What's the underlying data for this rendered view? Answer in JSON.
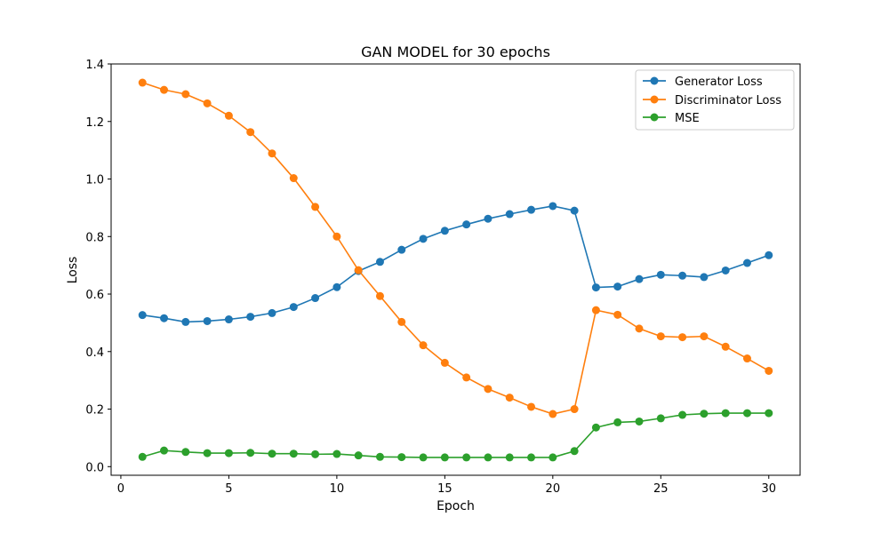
{
  "chart_data": {
    "type": "line",
    "title": "GAN MODEL  for 30 epochs",
    "xlabel": "Epoch",
    "ylabel": "Loss",
    "xlim": [
      -0.45,
      31.45
    ],
    "ylim": [
      -0.03,
      1.4
    ],
    "xticks": [
      0,
      5,
      10,
      15,
      20,
      25,
      30
    ],
    "yticks": [
      0.0,
      0.2,
      0.4,
      0.6,
      0.8,
      1.0,
      1.2,
      1.4
    ],
    "ytick_labels": [
      "0.0",
      "0.2",
      "0.4",
      "0.6",
      "0.8",
      "1.0",
      "1.2",
      "1.4"
    ],
    "grid": false,
    "legend_position": "top-right",
    "x": [
      1,
      2,
      3,
      4,
      5,
      6,
      7,
      8,
      9,
      10,
      11,
      12,
      13,
      14,
      15,
      16,
      17,
      18,
      19,
      20,
      21,
      22,
      23,
      24,
      25,
      26,
      27,
      28,
      29,
      30
    ],
    "series": [
      {
        "name": "Generator Loss",
        "color": "#1f77b4",
        "values": [
          0.527,
          0.516,
          0.503,
          0.506,
          0.512,
          0.521,
          0.534,
          0.555,
          0.586,
          0.624,
          0.68,
          0.712,
          0.754,
          0.792,
          0.82,
          0.842,
          0.862,
          0.878,
          0.893,
          0.906,
          0.89,
          0.623,
          0.626,
          0.652,
          0.667,
          0.664,
          0.659,
          0.682,
          0.708,
          0.735
        ]
      },
      {
        "name": "Discriminator Loss",
        "color": "#ff7f0e",
        "values": [
          1.335,
          1.31,
          1.295,
          1.263,
          1.22,
          1.163,
          1.089,
          1.003,
          0.903,
          0.8,
          0.683,
          0.593,
          0.503,
          0.422,
          0.361,
          0.31,
          0.27,
          0.24,
          0.208,
          0.183,
          0.2,
          0.544,
          0.528,
          0.48,
          0.453,
          0.45,
          0.453,
          0.417,
          0.376,
          0.333
        ]
      },
      {
        "name": "MSE",
        "color": "#2ca02c",
        "values": [
          0.034,
          0.056,
          0.051,
          0.047,
          0.047,
          0.048,
          0.045,
          0.045,
          0.043,
          0.044,
          0.039,
          0.034,
          0.033,
          0.032,
          0.032,
          0.032,
          0.032,
          0.032,
          0.032,
          0.032,
          0.054,
          0.136,
          0.154,
          0.157,
          0.168,
          0.18,
          0.184,
          0.186,
          0.186,
          0.186
        ]
      }
    ]
  }
}
